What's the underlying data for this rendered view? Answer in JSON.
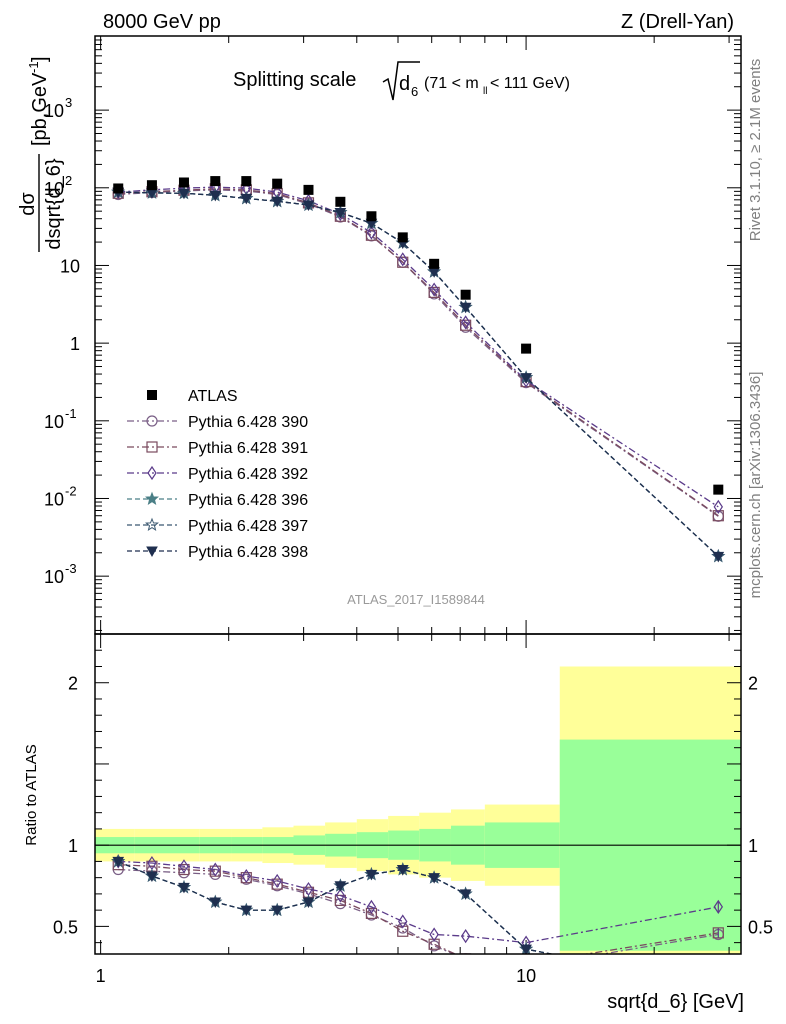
{
  "header": {
    "energy_label": "8000 GeV pp",
    "process_label": "Z (Drell-Yan)"
  },
  "side_labels": {
    "version": "Rivet 3.1.10, ≥ 2.1M events",
    "site": "mcplots.cern.ch [arXiv:1306.3436]"
  },
  "main_plot": {
    "title_prefix": "Splitting scale",
    "title_d": "d",
    "title_sub": "6",
    "title_range": "(71 < m",
    "title_range_sub": "ll",
    "title_range_tail": " < 111 GeV)",
    "ylabel_num": "dσ",
    "ylabel_den": "dsqrt{d_6}",
    "ylabel_units": "[pb,GeV",
    "ylabel_units_sup": "-1",
    "ylabel_units_tail": "]",
    "analysis_id": "ATLAS_2017_I1589844"
  },
  "ratio_plot": {
    "ylabel": "Ratio to ATLAS"
  },
  "x_axis": {
    "label": "sqrt{d_6} [GeV]",
    "tick_labels": [
      "1",
      "10"
    ]
  },
  "colors": {
    "data": "#000000",
    "p390": "#7a5f86",
    "p391": "#7a4a5e",
    "p392": "#5b3b8a",
    "p396": "#4a7f86",
    "p397": "#3b5870",
    "p398": "#1f2f4f",
    "band_inner": "#99ff99",
    "band_outer": "#ffff99"
  },
  "chart_data": {
    "type": "line",
    "xscale": "log",
    "yscale": "log",
    "xlim": [
      0.97,
      32
    ],
    "ylim": [
      0.00018,
      9000
    ],
    "ratio_ylim": [
      0.33,
      2.3
    ],
    "y_tick_labels": [
      "10^-3",
      "10^-2",
      "10^-1",
      "1",
      "10",
      "10^2",
      "10^3"
    ],
    "ratio_tick_labels": [
      "0.5",
      "1",
      "2"
    ],
    "x": [
      1.1,
      1.32,
      1.57,
      1.86,
      2.2,
      2.6,
      3.08,
      3.66,
      4.33,
      5.13,
      6.08,
      7.21,
      10.0,
      28.3
    ],
    "data": {
      "name": "ATLAS",
      "values": [
        98,
        108,
        117,
        122,
        122,
        113,
        94,
        66,
        43,
        23,
        10.5,
        4.2,
        0.85,
        0.013
      ]
    },
    "series": [
      {
        "name": "Pythia 6.428 390",
        "marker": "circle",
        "dash": "dashdot",
        "color_key": "p390",
        "values": [
          82,
          87,
          91,
          94,
          91,
          82,
          62,
          42,
          24,
          11,
          4.3,
          1.6,
          0.31,
          0.0059
        ]
      },
      {
        "name": "Pythia 6.428 391",
        "marker": "square",
        "dash": "dashdot",
        "color_key": "p391",
        "values": [
          85,
          89,
          93,
          97,
          94,
          84,
          64,
          43,
          24.5,
          11,
          4.5,
          1.7,
          0.32,
          0.006
        ]
      },
      {
        "name": "Pythia 6.428 392",
        "marker": "diamond",
        "dash": "dashdot",
        "color_key": "p392",
        "values": [
          88,
          94,
          99,
          102,
          99,
          88,
          68,
          46,
          26.5,
          12,
          4.9,
          1.85,
          0.33,
          0.0078
        ]
      },
      {
        "name": "Pythia 6.428 396",
        "marker": "star",
        "dash": "dashed",
        "color_key": "p396",
        "values": [
          88,
          86,
          85,
          80,
          73,
          67,
          60,
          48,
          35,
          19.5,
          8.3,
          2.9,
          0.36,
          0.0018
        ]
      },
      {
        "name": "Pythia 6.428 397",
        "marker": "staropen",
        "dash": "dashed",
        "color_key": "p397",
        "values": [
          88,
          86,
          85,
          80,
          73,
          67,
          60,
          48,
          35,
          19.5,
          8.3,
          2.9,
          0.36,
          0.0018
        ]
      },
      {
        "name": "Pythia 6.428 398",
        "marker": "triangle",
        "dash": "dashed",
        "color_key": "p398",
        "values": [
          88,
          86,
          85,
          80,
          73,
          67,
          60,
          48,
          35,
          19.5,
          8.3,
          2.9,
          0.36,
          0.0018
        ]
      }
    ],
    "ratio_series": [
      {
        "name": "Pythia 6.428 390",
        "values": [
          0.85,
          0.84,
          0.83,
          0.82,
          0.79,
          0.75,
          0.7,
          0.64,
          0.57,
          0.49,
          0.38,
          0.3,
          0.25,
          0.45
        ]
      },
      {
        "name": "Pythia 6.428 391",
        "values": [
          0.88,
          0.87,
          0.85,
          0.84,
          0.8,
          0.76,
          0.71,
          0.66,
          0.58,
          0.47,
          0.39,
          0.3,
          0.27,
          0.46
        ]
      },
      {
        "name": "Pythia 6.428 392",
        "values": [
          0.9,
          0.89,
          0.87,
          0.85,
          0.81,
          0.78,
          0.73,
          0.69,
          0.62,
          0.53,
          0.45,
          0.44,
          0.4,
          0.62
        ]
      },
      {
        "name": "Pythia 6.428 396",
        "values": [
          0.9,
          0.81,
          0.74,
          0.65,
          0.6,
          0.6,
          0.65,
          0.75,
          0.82,
          0.85,
          0.8,
          0.7,
          0.36,
          0.13
        ]
      },
      {
        "name": "Pythia 6.428 397",
        "values": [
          0.9,
          0.81,
          0.74,
          0.65,
          0.6,
          0.6,
          0.65,
          0.75,
          0.82,
          0.85,
          0.8,
          0.7,
          0.36,
          0.13
        ]
      },
      {
        "name": "Pythia 6.428 398",
        "values": [
          0.9,
          0.81,
          0.74,
          0.65,
          0.6,
          0.6,
          0.65,
          0.75,
          0.82,
          0.85,
          0.8,
          0.7,
          0.36,
          0.13
        ]
      }
    ],
    "ratio_bands": {
      "bin_edges": [
        0.97,
        1.2,
        1.44,
        1.71,
        2.03,
        2.4,
        2.84,
        3.37,
        4.0,
        4.74,
        5.61,
        6.66,
        8.0,
        12.0,
        32.0
      ],
      "inner": [
        0.05,
        0.05,
        0.05,
        0.05,
        0.05,
        0.05,
        0.06,
        0.07,
        0.08,
        0.09,
        0.1,
        0.12,
        0.14,
        0.65
      ],
      "outer": [
        0.1,
        0.1,
        0.1,
        0.1,
        0.1,
        0.11,
        0.12,
        0.14,
        0.16,
        0.18,
        0.2,
        0.22,
        0.25,
        1.1
      ]
    },
    "legend_position": "left-middle"
  }
}
